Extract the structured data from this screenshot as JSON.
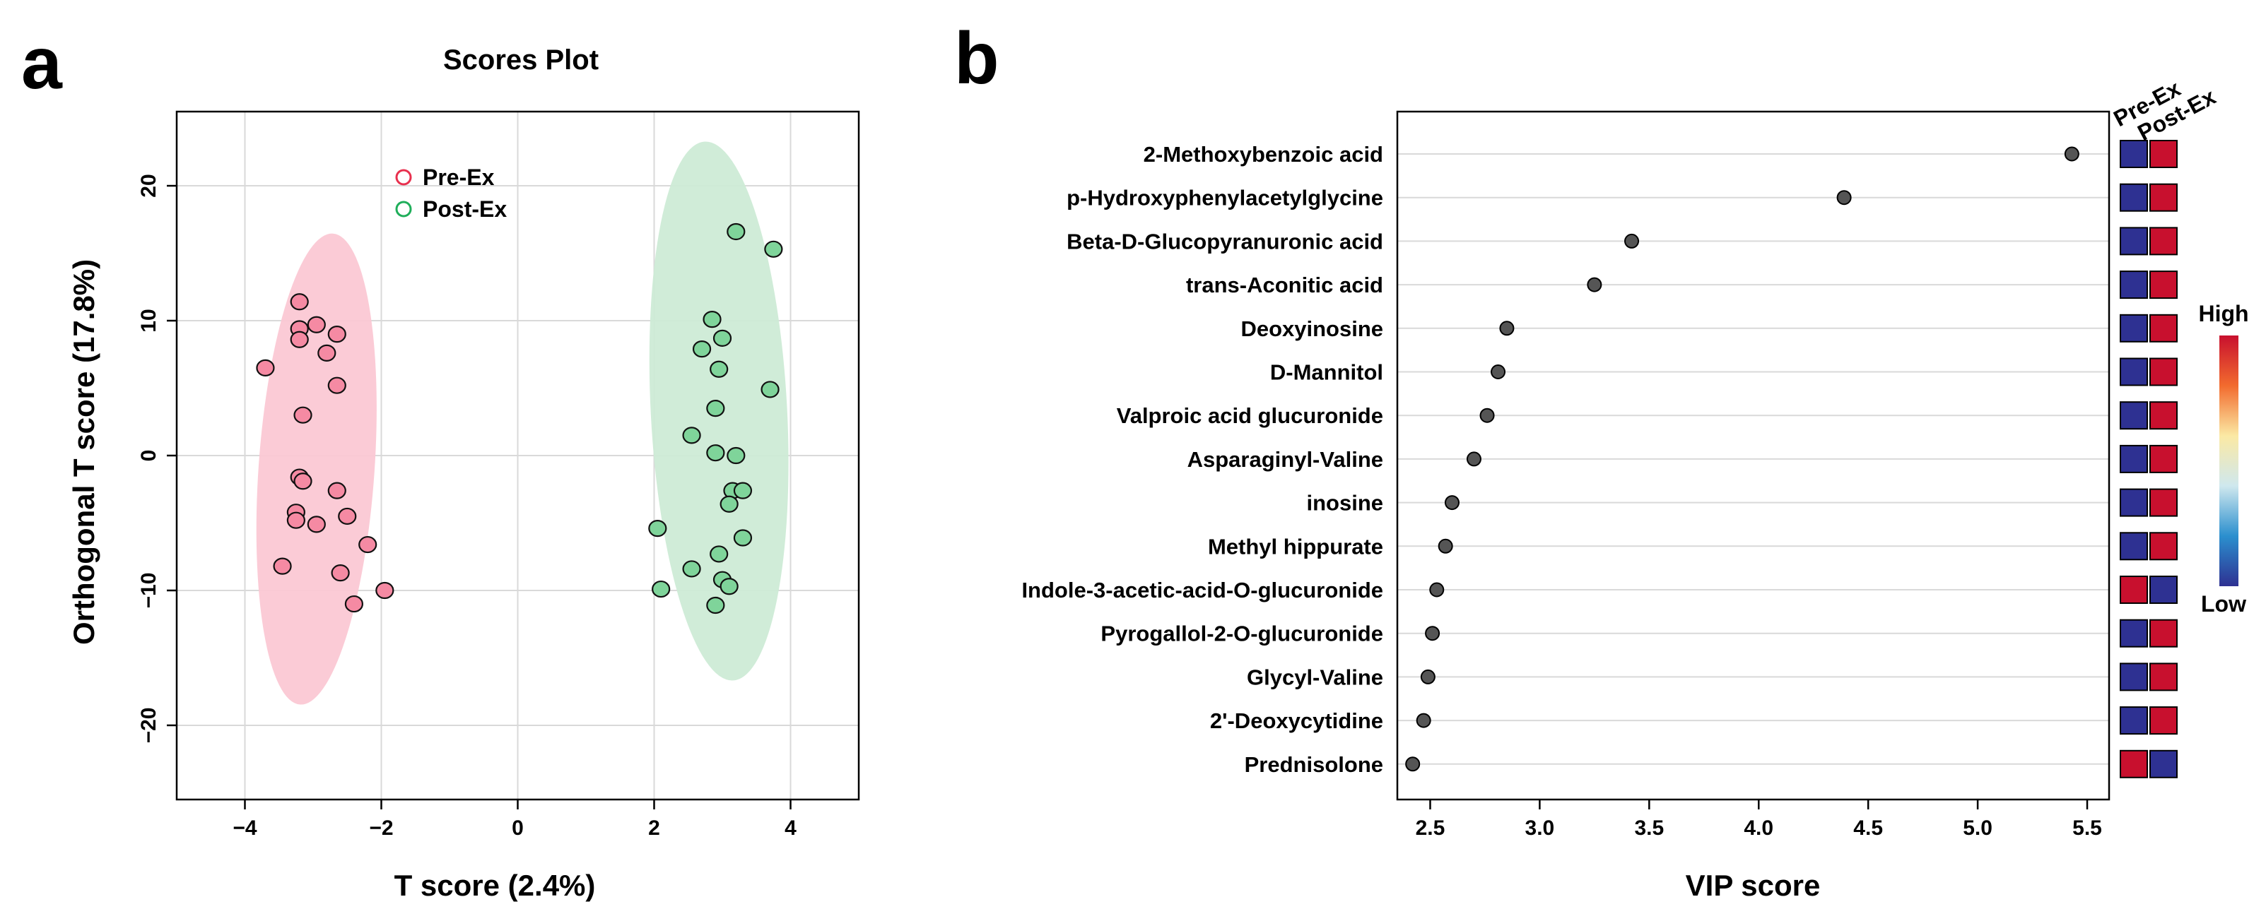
{
  "panels": {
    "a": "a",
    "b": "b"
  },
  "chart_data": [
    {
      "type": "scatter",
      "title": "Scores Plot",
      "xlabel": "T score (2.4%)",
      "ylabel": "Orthogonal T score (17.8%)",
      "xlim": [
        -5,
        5
      ],
      "ylim": [
        -25.5,
        25.5
      ],
      "xticks": [
        -4,
        -2,
        0,
        2,
        4
      ],
      "xtick_labels": [
        "−4",
        "−2",
        "0",
        "2",
        "4"
      ],
      "yticks": [
        -20,
        -10,
        0,
        10,
        20
      ],
      "ytick_labels": [
        "−20",
        "−10",
        "0",
        "10",
        "20"
      ],
      "grid": true,
      "legend_position": "top-center",
      "series": [
        {
          "name": "Pre-Ex",
          "edge_color": "#e8304e",
          "fill_color": "#f58aa3",
          "ellipse_color": "#fbc8d4",
          "ellipse": {
            "cx": -2.95,
            "cy": -1.0,
            "rx": 0.85,
            "ry": 17.5,
            "angle_deg": 4
          },
          "points": [
            [
              -3.7,
              6.5
            ],
            [
              -3.2,
              11.4
            ],
            [
              -3.2,
              9.4
            ],
            [
              -2.95,
              9.7
            ],
            [
              -2.65,
              9.0
            ],
            [
              -3.2,
              8.6
            ],
            [
              -2.8,
              7.6
            ],
            [
              -2.65,
              5.2
            ],
            [
              -3.15,
              3.0
            ],
            [
              -3.2,
              -1.6
            ],
            [
              -3.15,
              -1.9
            ],
            [
              -2.65,
              -2.6
            ],
            [
              -3.25,
              -4.2
            ],
            [
              -2.5,
              -4.5
            ],
            [
              -3.25,
              -4.8
            ],
            [
              -2.95,
              -5.1
            ],
            [
              -2.2,
              -6.6
            ],
            [
              -3.45,
              -8.2
            ],
            [
              -2.6,
              -8.7
            ],
            [
              -1.95,
              -10.0
            ],
            [
              -2.4,
              -11.0
            ]
          ]
        },
        {
          "name": "Post-Ex",
          "edge_color": "#1fae5a",
          "fill_color": "#7fd49a",
          "ellipse_color": "#cdebd6",
          "ellipse": {
            "cx": 2.95,
            "cy": 3.3,
            "rx": 1.0,
            "ry": 20.0,
            "angle_deg": -3
          },
          "points": [
            [
              3.2,
              16.6
            ],
            [
              3.75,
              15.3
            ],
            [
              2.85,
              10.1
            ],
            [
              3.0,
              8.7
            ],
            [
              2.7,
              7.9
            ],
            [
              2.95,
              6.4
            ],
            [
              3.7,
              4.9
            ],
            [
              2.9,
              3.5
            ],
            [
              2.55,
              1.5
            ],
            [
              2.9,
              0.2
            ],
            [
              3.2,
              0.0
            ],
            [
              3.15,
              -2.6
            ],
            [
              3.3,
              -2.6
            ],
            [
              3.1,
              -3.6
            ],
            [
              2.05,
              -5.4
            ],
            [
              3.3,
              -6.1
            ],
            [
              2.95,
              -7.3
            ],
            [
              2.55,
              -8.4
            ],
            [
              3.0,
              -9.2
            ],
            [
              3.1,
              -9.7
            ],
            [
              2.1,
              -9.9
            ],
            [
              2.9,
              -11.1
            ]
          ]
        }
      ]
    },
    {
      "type": "dot",
      "xlabel": "VIP score",
      "xlim": [
        2.35,
        5.6
      ],
      "xticks": [
        2.5,
        3.0,
        3.5,
        4.0,
        4.5,
        5.0,
        5.5
      ],
      "xtick_labels": [
        "2.5",
        "3.0",
        "3.5",
        "4.0",
        "4.5",
        "5.0",
        "5.5"
      ],
      "grid": true,
      "point_color": "#555555",
      "categories": [
        "2-Methoxybenzoic acid",
        "p-Hydroxyphenylacetylglycine",
        "Beta-D-Glucopyranuronic acid",
        "trans-Aconitic acid",
        "Deoxyinosine",
        "D-Mannitol",
        "Valproic acid glucuronide",
        "Asparaginyl-Valine",
        "inosine",
        "Methyl hippurate",
        "Indole-3-acetic-acid-O-glucuronide",
        "Pyrogallol-2-O-glucuronide",
        "Glycyl-Valine",
        "2'-Deoxycytidine",
        "Prednisolone"
      ],
      "values": [
        5.43,
        4.39,
        3.42,
        3.25,
        2.85,
        2.81,
        2.76,
        2.7,
        2.6,
        2.57,
        2.53,
        2.51,
        2.49,
        2.47,
        2.42
      ],
      "heatmap": {
        "columns": [
          "Pre-Ex",
          "Post-Ex"
        ],
        "levels": [
          [
            "low",
            "high"
          ],
          [
            "low",
            "high"
          ],
          [
            "low",
            "high"
          ],
          [
            "low",
            "high"
          ],
          [
            "low",
            "high"
          ],
          [
            "low",
            "high"
          ],
          [
            "low",
            "high"
          ],
          [
            "low",
            "high"
          ],
          [
            "low",
            "high"
          ],
          [
            "low",
            "high"
          ],
          [
            "high",
            "low"
          ],
          [
            "low",
            "high"
          ],
          [
            "low",
            "high"
          ],
          [
            "low",
            "high"
          ],
          [
            "high",
            "low"
          ]
        ],
        "high_color": "#c8102e",
        "low_color": "#2e3192"
      },
      "colorbar": {
        "high_label": "High",
        "low_label": "Low",
        "colors": [
          "#c8102e",
          "#f26b2e",
          "#fbe9a4",
          "#cfe8ee",
          "#2b8fce",
          "#2e3192"
        ]
      }
    }
  ]
}
